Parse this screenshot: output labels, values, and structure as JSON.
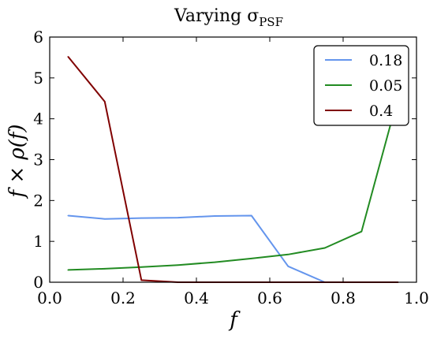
{
  "chart_data": {
    "type": "line",
    "title": "Varying σ",
    "title_subscript": "PSF",
    "xlabel": "f",
    "ylabel": "f × ρ(f)",
    "xlim": [
      0.0,
      1.0
    ],
    "ylim": [
      0,
      6
    ],
    "xticks": [
      "0.0",
      "0.2",
      "0.4",
      "0.6",
      "0.8",
      "1.0"
    ],
    "yticks": [
      "0",
      "1",
      "2",
      "3",
      "4",
      "5",
      "6"
    ],
    "grid": false,
    "legend_position": "top-right",
    "series": [
      {
        "name": "0.18",
        "color": "#6495ED",
        "x": [
          0.05,
          0.15,
          0.25,
          0.35,
          0.45,
          0.55,
          0.65,
          0.75,
          0.85,
          0.95
        ],
        "y": [
          1.63,
          1.55,
          1.57,
          1.58,
          1.62,
          1.63,
          0.39,
          0.0,
          0.0,
          0.0
        ]
      },
      {
        "name": "0.05",
        "color": "#228B22",
        "x": [
          0.05,
          0.15,
          0.25,
          0.35,
          0.45,
          0.55,
          0.65,
          0.75,
          0.85,
          0.95
        ],
        "y": [
          0.3,
          0.33,
          0.37,
          0.42,
          0.49,
          0.58,
          0.68,
          0.84,
          1.24,
          4.55
        ]
      },
      {
        "name": "0.4",
        "color": "#800000",
        "x": [
          0.05,
          0.15,
          0.25,
          0.35,
          0.45,
          0.55,
          0.65,
          0.75,
          0.85,
          0.95
        ],
        "y": [
          5.52,
          4.42,
          0.05,
          0.0,
          0.0,
          0.0,
          0.0,
          0.0,
          0.0,
          0.0
        ]
      }
    ]
  }
}
